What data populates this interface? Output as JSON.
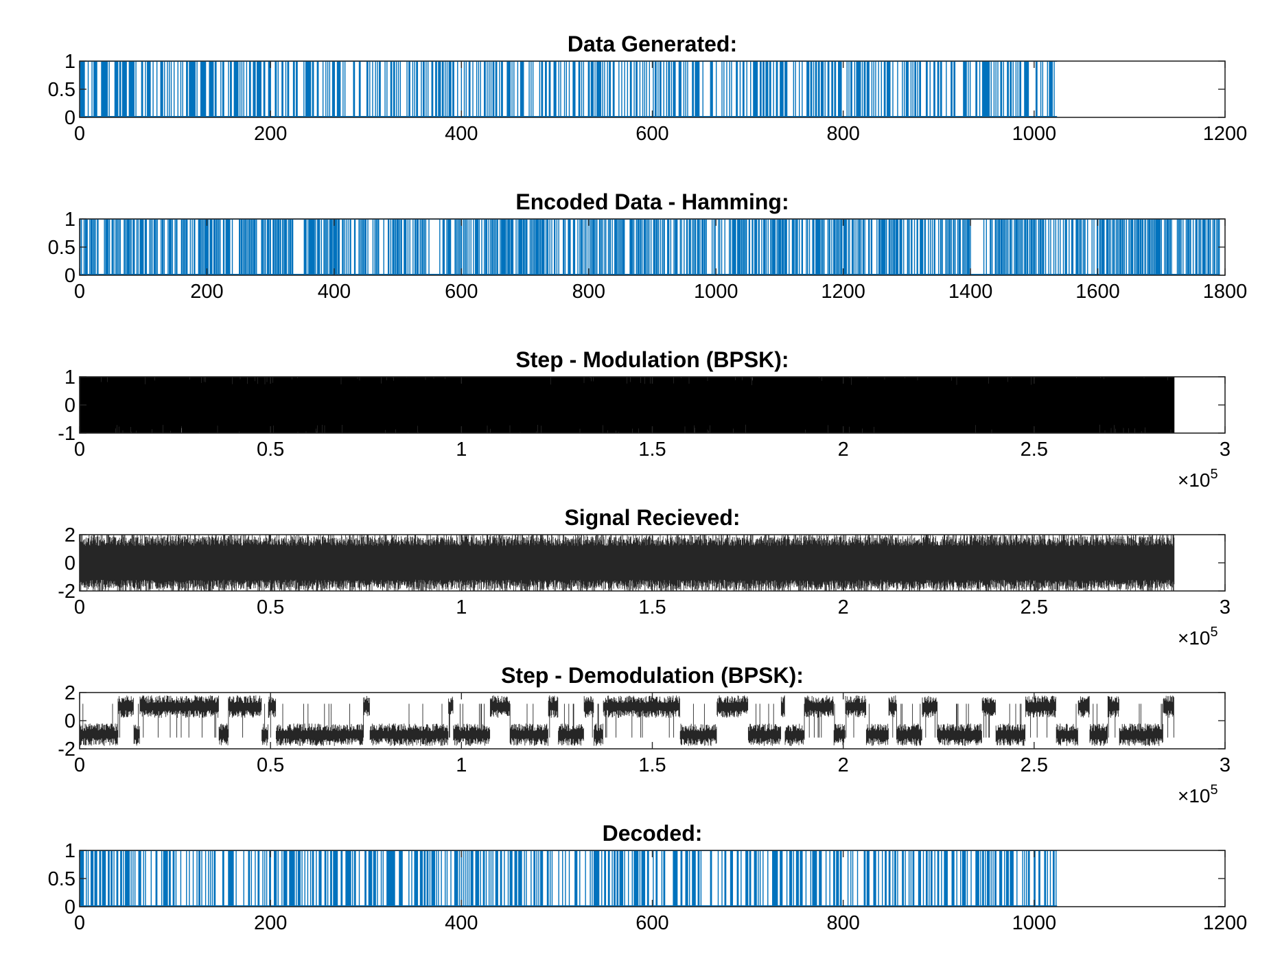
{
  "window": {
    "layout": "6 stacked subplots"
  },
  "colors": {
    "blue": "#0072BD",
    "black": "#000000",
    "axis": "#262626"
  },
  "chart_data": [
    {
      "type": "line",
      "render": "binary-stem",
      "title": "Data Generated:",
      "xlabel": "",
      "ylabel": "",
      "xlim": [
        0,
        1200
      ],
      "ylim": [
        0,
        1
      ],
      "xticks": [
        "0",
        "200",
        "400",
        "600",
        "800",
        "1000",
        "1200"
      ],
      "yticks": [
        "0",
        "0.5",
        "1"
      ],
      "exponent": "",
      "color": "#0072BD",
      "series": [
        {
          "x_range": [
            1,
            1024
          ],
          "values": "binary random bits (0/1), 1024 samples"
        }
      ],
      "gaps": [
        [
          152,
          155
        ],
        [
          201,
          203
        ],
        [
          295,
          298
        ],
        [
          598,
          600
        ],
        [
          799,
          803
        ],
        [
          858,
          861
        ],
        [
          996,
          999
        ]
      ]
    },
    {
      "type": "line",
      "render": "binary-stem",
      "title": "Encoded Data - Hamming:",
      "xlabel": "",
      "ylabel": "",
      "xlim": [
        0,
        1800
      ],
      "ylim": [
        0,
        1
      ],
      "xticks": [
        "0",
        "200",
        "400",
        "600",
        "800",
        "1000",
        "1200",
        "1400",
        "1600",
        "1800"
      ],
      "yticks": [
        "0",
        "0.5",
        "1"
      ],
      "exponent": "",
      "color": "#0072BD",
      "series": [
        {
          "x_range": [
            1,
            1792
          ],
          "values": "binary Hamming-encoded bits (0/1), 1792 samples"
        }
      ],
      "gaps": [
        [
          30,
          35
        ],
        [
          244,
          250
        ],
        [
          280,
          284
        ],
        [
          336,
          350
        ],
        [
          584,
          589
        ],
        [
          754,
          759
        ],
        [
          1402,
          1418
        ],
        [
          1717,
          1722
        ]
      ]
    },
    {
      "type": "line",
      "render": "dense-noise",
      "title": "Step - Modulation (BPSK):",
      "xlabel": "",
      "ylabel": "",
      "xlim": [
        0,
        3
      ],
      "ylim": [
        -1,
        1
      ],
      "xticks": [
        "0",
        "0.5",
        "1",
        "1.5",
        "2",
        "2.5",
        "3"
      ],
      "yticks": [
        "-1",
        "0",
        "1"
      ],
      "exponent": "5",
      "color": "#000000",
      "series": [
        {
          "x_range": [
            0,
            2.867
          ],
          "values": "BPSK carrier waveform, amplitude between -1 and 1"
        }
      ]
    },
    {
      "type": "line",
      "render": "dense-noise",
      "title": "Signal Recieved:",
      "xlabel": "",
      "ylabel": "",
      "xlim": [
        0,
        3
      ],
      "ylim": [
        -2,
        2
      ],
      "xticks": [
        "0",
        "0.5",
        "1",
        "1.5",
        "2",
        "2.5",
        "3"
      ],
      "yticks": [
        "-2",
        "0",
        "2"
      ],
      "exponent": "5",
      "color": "#000000",
      "series": [
        {
          "x_range": [
            0,
            2.867
          ],
          "values": "noisy received waveform, amplitude roughly between -2 and 2"
        }
      ]
    },
    {
      "type": "line",
      "render": "demod",
      "title": "Step - Demodulation (BPSK):",
      "xlabel": "",
      "ylabel": "",
      "xlim": [
        0,
        3
      ],
      "ylim": [
        -2,
        2
      ],
      "xticks": [
        "0",
        "0.5",
        "1",
        "1.5",
        "2",
        "2.5",
        "3"
      ],
      "yticks": [
        "-2",
        "0",
        "2"
      ],
      "exponent": "5",
      "color": "#000000",
      "series": [
        {
          "x_range": [
            0,
            2.867
          ],
          "values": "demodulated noisy levels switching around +1 and -1"
        }
      ]
    },
    {
      "type": "line",
      "render": "binary-stem",
      "title": "Decoded:",
      "xlabel": "",
      "ylabel": "",
      "xlim": [
        0,
        1200
      ],
      "ylim": [
        0,
        1
      ],
      "xticks": [
        "0",
        "200",
        "400",
        "600",
        "800",
        "1000",
        "1200"
      ],
      "yticks": [
        "0",
        "0.5",
        "1"
      ],
      "exponent": "",
      "color": "#0072BD",
      "series": [
        {
          "x_range": [
            1,
            1024
          ],
          "values": "binary decoded bits (0/1), 1024 samples"
        }
      ],
      "gaps": [
        [
          152,
          155
        ],
        [
          201,
          203
        ],
        [
          295,
          298
        ],
        [
          598,
          600
        ],
        [
          799,
          803
        ],
        [
          858,
          861
        ],
        [
          996,
          999
        ]
      ]
    }
  ]
}
